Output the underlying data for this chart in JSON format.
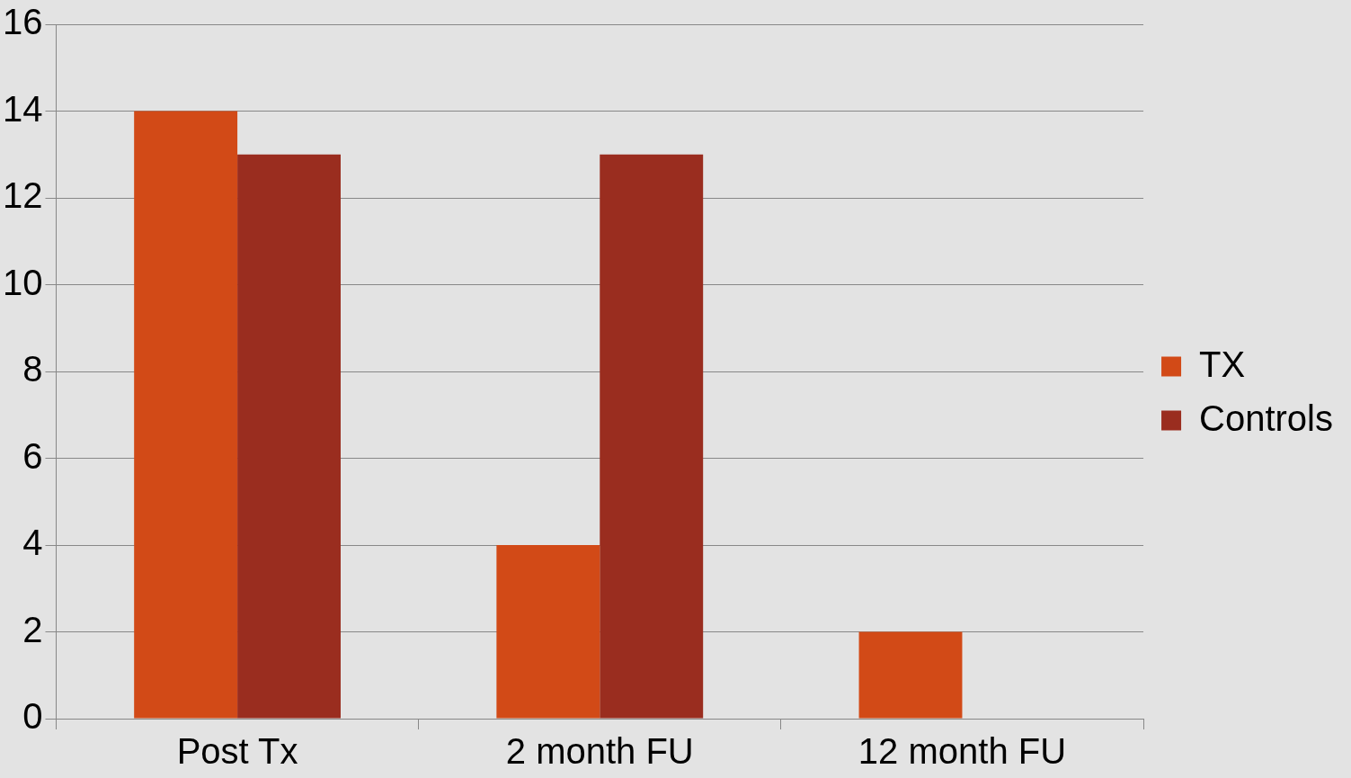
{
  "chart_data": {
    "type": "bar",
    "categories": [
      "Post Tx",
      "2 month FU",
      "12 month FU"
    ],
    "series": [
      {
        "name": "TX",
        "color": "#d24a17",
        "values": [
          14,
          4,
          2
        ]
      },
      {
        "name": "Controls",
        "color": "#9a2d1f",
        "values": [
          13,
          13,
          0
        ]
      }
    ],
    "ylim": [
      0,
      16
    ],
    "yticks": [
      0,
      2,
      4,
      6,
      8,
      10,
      12,
      14,
      16
    ],
    "grid": "y",
    "legend": "right"
  }
}
